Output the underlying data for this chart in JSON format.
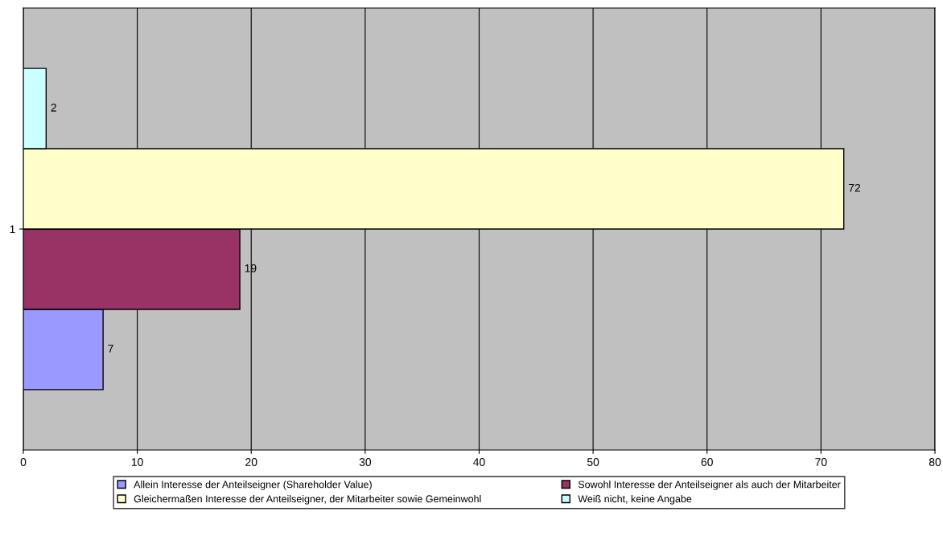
{
  "chart_data": {
    "type": "bar",
    "orientation": "horizontal",
    "categories": [
      "1"
    ],
    "series": [
      {
        "name": "Allein Interesse der Anteilseigner (Shareholder Value)",
        "color": "#9999ff",
        "values": [
          7
        ]
      },
      {
        "name": "Sowohl Interesse der Anteilseigner als auch der Mitarbeiter",
        "color": "#993366",
        "values": [
          19
        ]
      },
      {
        "name": "Gleichermaßen Interesse der Anteilseigner, der Mitarbeiter sowie Gemeinwohl",
        "color": "#ffffcc",
        "values": [
          72
        ]
      },
      {
        "name": "Weiß nicht, keine Angabe",
        "color": "#ccffff",
        "values": [
          2
        ]
      }
    ],
    "xlim": [
      0,
      80
    ],
    "xticks": [
      0,
      10,
      20,
      30,
      40,
      50,
      60,
      70,
      80
    ],
    "grid": "x",
    "legend": "bottom",
    "data_labels": true
  }
}
